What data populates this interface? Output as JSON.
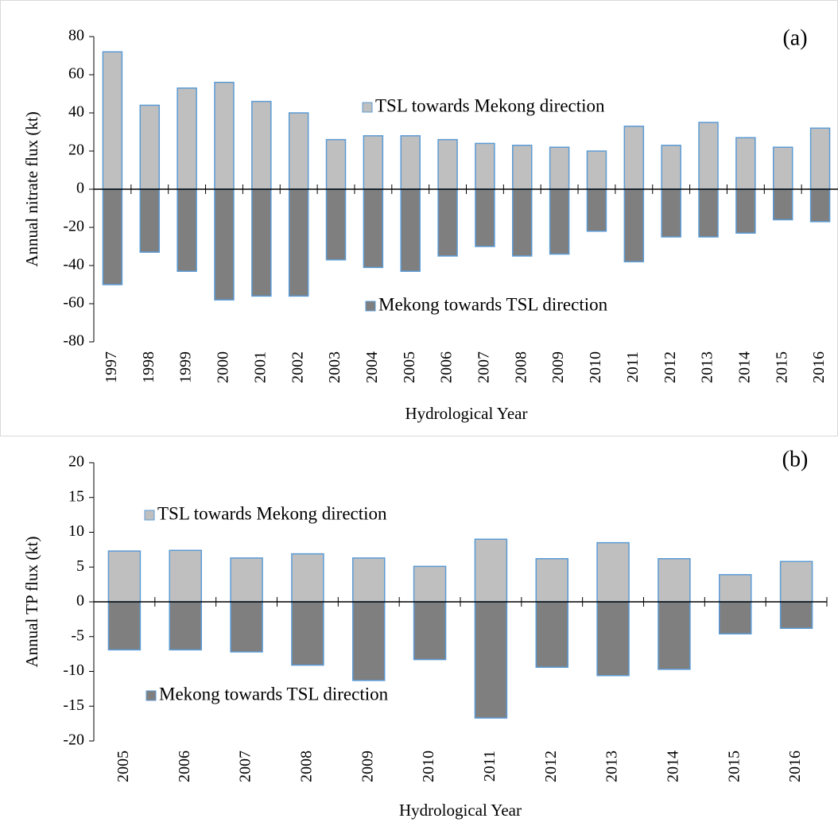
{
  "chart_data": [
    {
      "type": "bar",
      "label": "(a)",
      "x_label": "Hydrological Year",
      "y_label": "Annual nitrate flux (kt)",
      "categories": [
        "1997",
        "1998",
        "1999",
        "2000",
        "2001",
        "2002",
        "2003",
        "2004",
        "2005",
        "2006",
        "2007",
        "2008",
        "2009",
        "2010",
        "2011",
        "2012",
        "2013",
        "2014",
        "2015",
        "2016"
      ],
      "series": [
        {
          "name": "TSL towards Mekong direction",
          "color": "#bfbfbf",
          "values": [
            72,
            44,
            53,
            56,
            46,
            40,
            26,
            28,
            28,
            26,
            24,
            23,
            22,
            20,
            33,
            23,
            35,
            27,
            22,
            32
          ]
        },
        {
          "name": "Mekong towards TSL direction",
          "color": "#7f7f7f",
          "values": [
            -50,
            -33,
            -43,
            -58,
            -56,
            -56,
            -37,
            -41,
            -43,
            -35,
            -30,
            -35,
            -34,
            -22,
            -38,
            -25,
            -25,
            -23,
            -16,
            -17
          ]
        }
      ],
      "ylim": [
        -80,
        80
      ],
      "yticks": [
        -80,
        -60,
        -40,
        -20,
        0,
        20,
        40,
        60,
        80
      ]
    },
    {
      "type": "bar",
      "label": "(b)",
      "x_label": "Hydrological Year",
      "y_label": "Annual TP flux (kt)",
      "categories": [
        "2005",
        "2006",
        "2007",
        "2008",
        "2009",
        "2010",
        "2011",
        "2012",
        "2013",
        "2014",
        "2015",
        "2016"
      ],
      "series": [
        {
          "name": "TSL towards Mekong direction",
          "color": "#bfbfbf",
          "values": [
            7.3,
            7.4,
            6.3,
            6.9,
            6.3,
            5.1,
            9.0,
            6.2,
            8.5,
            6.2,
            3.9,
            5.8
          ]
        },
        {
          "name": "Mekong towards TSL direction",
          "color": "#7f7f7f",
          "values": [
            -6.9,
            -6.9,
            -7.2,
            -9.1,
            -11.3,
            -8.3,
            -16.7,
            -9.4,
            -10.6,
            -9.7,
            -4.6,
            -3.8
          ]
        }
      ],
      "ylim": [
        -20,
        20
      ],
      "yticks": [
        -20,
        -15,
        -10,
        -5,
        0,
        5,
        10,
        15,
        20
      ]
    }
  ]
}
